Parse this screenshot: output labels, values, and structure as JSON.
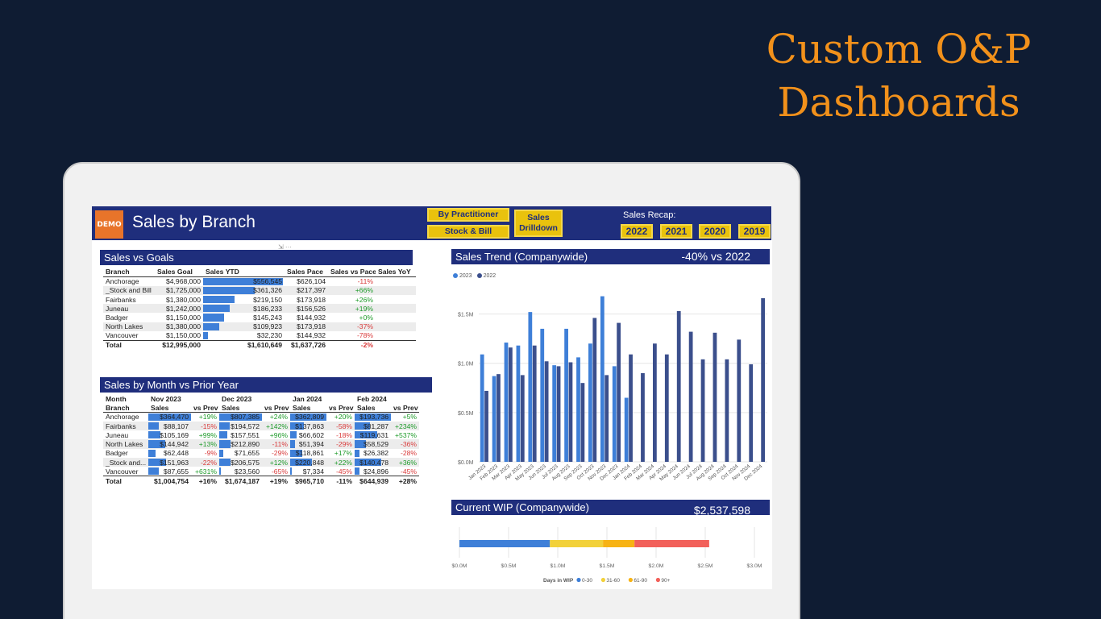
{
  "hero": {
    "line1": "Custom O&P",
    "line2": "Dashboards"
  },
  "colors": {
    "navy": "#1f2e7c",
    "accent": "#f2911b",
    "yellow": "#e9c20d",
    "bar2023": "#3e7fd8",
    "bar2022": "#3b4f8c"
  },
  "report": {
    "logo": "DEMO",
    "title": "Sales by Branch",
    "buttons": {
      "practitioner": "By Practitioner",
      "stock_bill": "Stock & Bill",
      "drilldown_line1": "Sales",
      "drilldown_line2": "Drilldown"
    },
    "recap_label": "Sales Recap:",
    "years": [
      "2022",
      "2021",
      "2020",
      "2019"
    ],
    "visual_icons": "⇲  ···"
  },
  "goals": {
    "title": "Sales vs Goals",
    "headers": [
      "Branch",
      "Sales Goal",
      "Sales YTD",
      "Sales Pace",
      "Sales vs Pace",
      "Sales YoY"
    ],
    "rows": [
      {
        "branch": "Anchorage",
        "goal": "$4,968,000",
        "ytd": "$556,545",
        "ytd_value": 556545,
        "pace": "$626,104",
        "vs_pace": "-11%",
        "yoy": ""
      },
      {
        "branch": "_Stock and Bill",
        "goal": "$1,725,000",
        "ytd": "$361,326",
        "ytd_value": 361326,
        "pace": "$217,397",
        "vs_pace": "+66%",
        "yoy": ""
      },
      {
        "branch": "Fairbanks",
        "goal": "$1,380,000",
        "ytd": "$219,150",
        "ytd_value": 219150,
        "pace": "$173,918",
        "vs_pace": "+26%",
        "yoy": ""
      },
      {
        "branch": "Juneau",
        "goal": "$1,242,000",
        "ytd": "$186,233",
        "ytd_value": 186233,
        "pace": "$156,526",
        "vs_pace": "+19%",
        "yoy": ""
      },
      {
        "branch": "Badger",
        "goal": "$1,150,000",
        "ytd": "$145,243",
        "ytd_value": 145243,
        "pace": "$144,932",
        "vs_pace": "+0%",
        "yoy": ""
      },
      {
        "branch": "North Lakes",
        "goal": "$1,380,000",
        "ytd": "$109,923",
        "ytd_value": 109923,
        "pace": "$173,918",
        "vs_pace": "-37%",
        "yoy": ""
      },
      {
        "branch": "Vancouver",
        "goal": "$1,150,000",
        "ytd": "$32,230",
        "ytd_value": 32230,
        "pace": "$144,932",
        "vs_pace": "-78%",
        "yoy": ""
      }
    ],
    "total": {
      "branch": "Total",
      "goal": "$12,995,000",
      "ytd": "$1,610,649",
      "pace": "$1,637,726",
      "vs_pace": "-2%",
      "yoy": ""
    }
  },
  "monthly": {
    "title": "Sales by Month vs Prior Year",
    "month_label": "Month",
    "branch_label": "Branch",
    "sales_label": "Sales",
    "prev_label": "vs Prev",
    "months": [
      "Nov 2023",
      "Dec 2023",
      "Jan 2024",
      "Feb 2024"
    ],
    "rows": [
      {
        "branch": "Anchorage",
        "cells": [
          [
            "$364,470",
            364470,
            "+19%"
          ],
          [
            "$807,385",
            807385,
            "+24%"
          ],
          [
            "$362,809",
            362809,
            "+20%"
          ],
          [
            "$193,736",
            193736,
            "+5%"
          ]
        ]
      },
      {
        "branch": "Fairbanks",
        "cells": [
          [
            "$88,107",
            88107,
            "-15%"
          ],
          [
            "$194,572",
            194572,
            "+142%"
          ],
          [
            "$137,863",
            137863,
            "-58%"
          ],
          [
            "$81,287",
            81287,
            "+234%"
          ]
        ]
      },
      {
        "branch": "Juneau",
        "cells": [
          [
            "$105,169",
            105169,
            "+99%"
          ],
          [
            "$157,551",
            157551,
            "+96%"
          ],
          [
            "$66,602",
            66602,
            "-18%"
          ],
          [
            "$119,631",
            119631,
            "+537%"
          ]
        ]
      },
      {
        "branch": "North Lakes",
        "cells": [
          [
            "$144,942",
            144942,
            "+13%"
          ],
          [
            "$212,890",
            212890,
            "-11%"
          ],
          [
            "$51,394",
            51394,
            "-29%"
          ],
          [
            "$58,529",
            58529,
            "-36%"
          ]
        ]
      },
      {
        "branch": "Badger",
        "cells": [
          [
            "$62,448",
            62448,
            "-9%"
          ],
          [
            "$71,655",
            71655,
            "-29%"
          ],
          [
            "$118,861",
            118861,
            "+17%"
          ],
          [
            "$26,382",
            26382,
            "-28%"
          ]
        ]
      },
      {
        "branch": "_Stock and...",
        "cells": [
          [
            "$151,963",
            151963,
            "-22%"
          ],
          [
            "$206,575",
            206575,
            "+12%"
          ],
          [
            "$220,848",
            220848,
            "+22%"
          ],
          [
            "$140,478",
            140478,
            "+36%"
          ]
        ]
      },
      {
        "branch": "Vancouver",
        "cells": [
          [
            "$87,655",
            87655,
            "+631%"
          ],
          [
            "$23,560",
            23560,
            "-65%"
          ],
          [
            "$7,334",
            7334,
            "-45%"
          ],
          [
            "$24,896",
            24896,
            "-45%"
          ]
        ]
      }
    ],
    "total": {
      "branch": "Total",
      "cells": [
        [
          "$1,004,754",
          "+16%"
        ],
        [
          "$1,674,187",
          "+19%"
        ],
        [
          "$965,710",
          "-11%"
        ],
        [
          "$644,939",
          "+28%"
        ]
      ]
    }
  },
  "trend": {
    "title": "Sales Trend (Companywide)",
    "delta": "-40% vs 2022",
    "chart_data": {
      "type": "bar",
      "title": "Sales Trend (Companywide)",
      "categories": [
        "Jan 2023",
        "Feb 2023",
        "Mar 2023",
        "Apr 2023",
        "May 2023",
        "Jun 2023",
        "Jul 2023",
        "Aug 2023",
        "Sep 2023",
        "Oct 2023",
        "Nov 2023",
        "Dec 2023",
        "Jan 2024",
        "Feb 2024",
        "Mar 2024",
        "Apr 2024",
        "May 2024",
        "Jun 2024",
        "Jul 2024",
        "Aug 2024",
        "Sep 2024",
        "Oct 2024",
        "Nov 2024",
        "Dec 2024"
      ],
      "series": [
        {
          "name": "2023",
          "values": [
            1.09,
            0.87,
            1.21,
            1.18,
            1.52,
            1.35,
            0.98,
            1.35,
            1.06,
            1.2,
            1.68,
            0.97,
            0.65,
            null,
            null,
            null,
            null,
            null,
            null,
            null,
            null,
            null,
            null,
            null
          ]
        },
        {
          "name": "2022",
          "values": [
            0.72,
            0.89,
            1.16,
            0.88,
            1.18,
            1.02,
            0.97,
            1.01,
            0.8,
            1.46,
            0.88,
            1.41,
            1.09,
            0.9,
            1.2,
            1.09,
            1.53,
            1.32,
            1.04,
            1.31,
            1.04,
            1.24,
            0.99,
            1.66
          ]
        }
      ],
      "y_ticks": [
        "$0.0M",
        "$0.5M",
        "$1.0M",
        "$1.5M"
      ],
      "ylim": [
        0,
        1.75
      ],
      "legend": "top-left"
    }
  },
  "wip": {
    "title": "Current WIP (Companywide)",
    "total": "$2,537,598",
    "chart_data": {
      "type": "bar",
      "orientation": "horizontal-stacked",
      "series": [
        {
          "name": "0-30",
          "value": 0.92,
          "color": "#3e7fd8"
        },
        {
          "name": "31-60",
          "value": 0.54,
          "color": "#f2d13a"
        },
        {
          "name": "61-90",
          "value": 0.32,
          "color": "#f7b314"
        },
        {
          "name": "90+",
          "value": 0.76,
          "color": "#f2605a"
        }
      ],
      "x_ticks": [
        "$0.0M",
        "$0.5M",
        "$1.0M",
        "$1.5M",
        "$2.0M",
        "$2.5M",
        "$3.0M"
      ],
      "xlim": [
        0,
        3.0
      ],
      "legend_title": "Days in WIP"
    }
  }
}
